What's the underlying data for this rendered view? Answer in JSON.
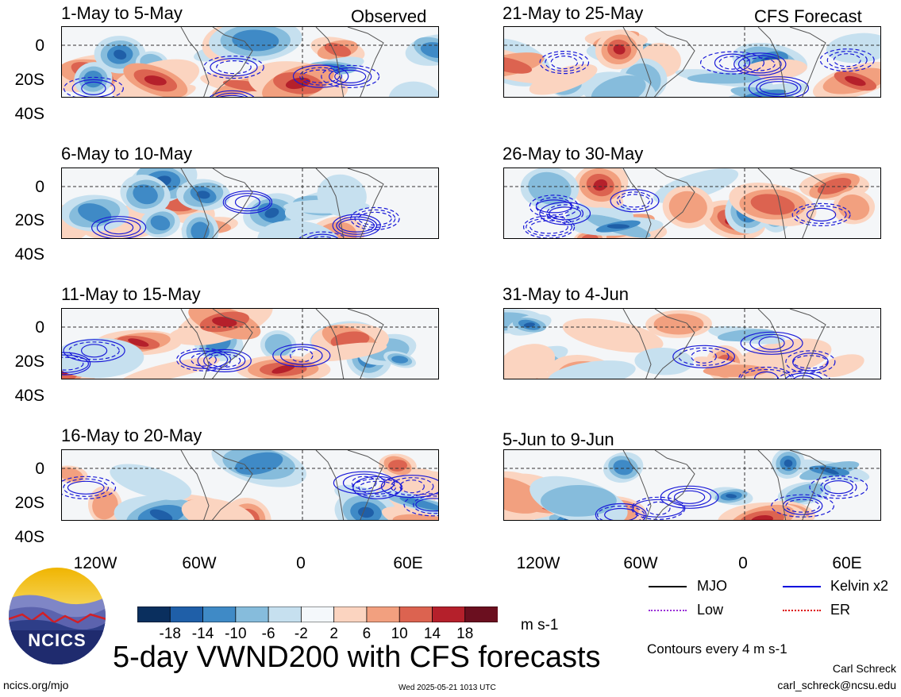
{
  "left_column_label": "Observed",
  "right_column_label": "CFS Forecast",
  "panels_left": [
    {
      "title": "1-May to 5-May"
    },
    {
      "title": "6-May to 10-May"
    },
    {
      "title": "11-May to 15-May"
    },
    {
      "title": "16-May to 20-May"
    }
  ],
  "panels_right": [
    {
      "title": "21-May to 25-May"
    },
    {
      "title": "26-May to 30-May"
    },
    {
      "title": "31-May to 4-Jun"
    },
    {
      "title": "5-Jun to 9-Jun"
    }
  ],
  "y_ticks": [
    "0",
    "20S",
    "40S"
  ],
  "x_ticks": [
    "120W",
    "60W",
    "0",
    "60E"
  ],
  "colorbar": {
    "labels": [
      "-18",
      "-14",
      "-10",
      "-6",
      "-2",
      "2",
      "6",
      "10",
      "14",
      "18"
    ],
    "colors": [
      "#0a2f5e",
      "#1f5fa8",
      "#3f8ac6",
      "#86bcdc",
      "#c6e0ef",
      "#f4f8fb",
      "#fbd4c0",
      "#f2a07f",
      "#dc6350",
      "#b5202b",
      "#6b0f1f"
    ],
    "units": "m s-1"
  },
  "legend": {
    "items": [
      {
        "label": "MJO",
        "color": "#000000"
      },
      {
        "label": "Kelvin x2",
        "color": "#0000dd"
      },
      {
        "label": "Low",
        "color": "#9a30d8"
      },
      {
        "label": "ER",
        "color": "#dd0000"
      }
    ],
    "contours_note": "Contours every 4 m s-1"
  },
  "main_title": "5-day VWND200 with CFS forecasts",
  "logo_text": "NCICS",
  "footer": {
    "left": "ncics.org/mjo",
    "center": "Wed 2025-05-21 1013 UTC",
    "author": "Carl Schreck",
    "email": "carl_schreck@ncsu.edu"
  }
}
